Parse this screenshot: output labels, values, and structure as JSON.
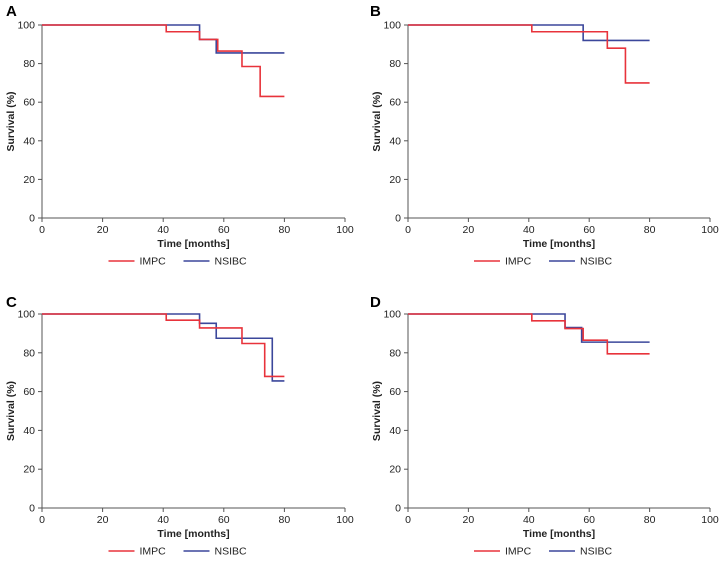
{
  "colors": {
    "IMPC": "#e8333b",
    "NSIBC": "#3b479b",
    "axis": "#555555",
    "text": "#222222"
  },
  "chart_data": [
    {
      "type": "line",
      "step": true,
      "panel": "A",
      "xlabel": "Time [months]",
      "ylabel": "Survival (%)",
      "xlim": [
        0,
        100
      ],
      "ylim": [
        0,
        100
      ],
      "xticks": [
        0,
        20,
        40,
        60,
        80,
        100
      ],
      "yticks": [
        0,
        20,
        40,
        60,
        80,
        100
      ],
      "grid": false,
      "legend": "bottom-center",
      "series": [
        {
          "name": "IMPC",
          "x": [
            0,
            41,
            52,
            58,
            66,
            72,
            80
          ],
          "y": [
            100,
            96.5,
            92.5,
            86.5,
            78.5,
            63,
            63
          ]
        },
        {
          "name": "NSIBC",
          "x": [
            0,
            52,
            57.5,
            80
          ],
          "y": [
            100,
            92.5,
            85.5,
            85.5
          ]
        }
      ]
    },
    {
      "type": "line",
      "step": true,
      "panel": "B",
      "xlabel": "Time [months]",
      "ylabel": "Survival (%)",
      "xlim": [
        0,
        100
      ],
      "ylim": [
        0,
        100
      ],
      "xticks": [
        0,
        20,
        40,
        60,
        80,
        100
      ],
      "yticks": [
        0,
        20,
        40,
        60,
        80,
        100
      ],
      "grid": false,
      "legend": "bottom-center",
      "series": [
        {
          "name": "IMPC",
          "x": [
            0,
            41,
            66,
            72,
            80
          ],
          "y": [
            100,
            96.5,
            88,
            70,
            70
          ]
        },
        {
          "name": "NSIBC",
          "x": [
            0,
            58,
            80
          ],
          "y": [
            100,
            92,
            92
          ]
        }
      ]
    },
    {
      "type": "line",
      "step": true,
      "panel": "C",
      "xlabel": "Time [months]",
      "ylabel": "Survival (%)",
      "xlim": [
        0,
        100
      ],
      "ylim": [
        0,
        100
      ],
      "xticks": [
        0,
        20,
        40,
        60,
        80,
        100
      ],
      "yticks": [
        0,
        20,
        40,
        60,
        80,
        100
      ],
      "grid": false,
      "legend": "bottom-center",
      "series": [
        {
          "name": "IMPC",
          "x": [
            0,
            41,
            52,
            66,
            73.5,
            80
          ],
          "y": [
            100,
            96.8,
            92.8,
            84.8,
            67.8,
            67.8
          ]
        },
        {
          "name": "NSIBC",
          "x": [
            0,
            52,
            57.5,
            76,
            80
          ],
          "y": [
            100,
            95.2,
            87.5,
            65.5,
            65.5
          ]
        }
      ]
    },
    {
      "type": "line",
      "step": true,
      "panel": "D",
      "xlabel": "Time [months]",
      "ylabel": "Survival (%)",
      "xlim": [
        0,
        100
      ],
      "ylim": [
        0,
        100
      ],
      "xticks": [
        0,
        20,
        40,
        60,
        80,
        100
      ],
      "yticks": [
        0,
        20,
        40,
        60,
        80,
        100
      ],
      "grid": false,
      "legend": "bottom-center",
      "series": [
        {
          "name": "IMPC",
          "x": [
            0,
            41,
            52,
            58,
            66,
            80
          ],
          "y": [
            100,
            96.5,
            92.5,
            86.5,
            79.5,
            79.5
          ]
        },
        {
          "name": "NSIBC",
          "x": [
            0,
            52,
            57.5,
            80
          ],
          "y": [
            100,
            93,
            85.5,
            85.5
          ]
        }
      ]
    }
  ]
}
